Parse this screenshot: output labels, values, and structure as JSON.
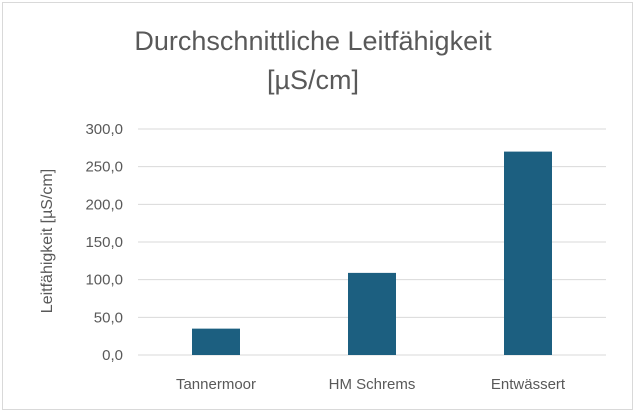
{
  "chart_data": {
    "type": "bar",
    "title": "Durchschnittliche Leitfähigkeit",
    "subtitle": "[µS/cm]",
    "xlabel": "",
    "ylabel": "Leitfähigkeit [µS/cm]",
    "categories": [
      "Tannermoor",
      "HM Schrems",
      "Entwässert"
    ],
    "values": [
      35,
      109,
      270
    ],
    "ylim": [
      0,
      300
    ],
    "yticks": [
      "0,0",
      "50,0",
      "100,0",
      "150,0",
      "200,0",
      "250,0",
      "300,0"
    ],
    "grid": true,
    "legend": "none",
    "colors": {
      "bar": "#1c5f80",
      "grid": "#d9d9d9",
      "text": "#595959"
    }
  }
}
